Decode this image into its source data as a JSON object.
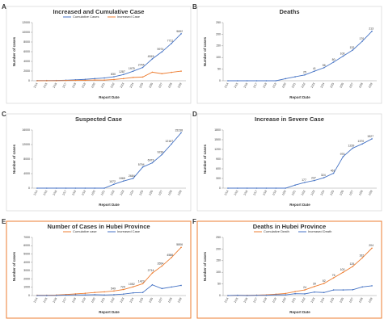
{
  "chart_data": [
    {
      "type": "line",
      "letter": "A",
      "title": "Increased and Cumulative Case",
      "x_label": "Report Date",
      "y_label": "Number of cases",
      "categories": [
        "1/14",
        "1/15",
        "1/16",
        "1/17",
        "1/18",
        "1/19",
        "1/20",
        "1/21",
        "1/22",
        "1/23",
        "1/24",
        "1/25",
        "1/26",
        "1/27",
        "1/28",
        "1/29"
      ],
      "series": [
        {
          "name": "Cumulative Cases",
          "color": "#4472c4",
          "values": [
            41,
            45,
            62,
            121,
            198,
            291,
            440,
            571,
            830,
            1287,
            1975,
            2744,
            4515,
            5974,
            7711,
            9692
          ]
        },
        {
          "name": "Increased Case",
          "color": "#ed7d31",
          "values": [
            0,
            4,
            17,
            59,
            77,
            93,
            149,
            131,
            259,
            444,
            688,
            769,
            1771,
            1459,
            1737,
            1982
          ]
        }
      ],
      "ylim": [
        0,
        12000
      ],
      "yticks": [
        0,
        2000,
        4000,
        6000,
        8000,
        10000,
        12000
      ]
    },
    {
      "type": "line",
      "letter": "B",
      "title": "Deaths",
      "x_label": "Report Date",
      "y_label": "Number of cases",
      "categories": [
        "1/14",
        "1/15",
        "1/16",
        "1/17",
        "1/18",
        "1/19",
        "1/20",
        "1/21",
        "1/22",
        "1/23",
        "1/24",
        "1/25",
        "1/26",
        "1/27",
        "1/28",
        "1/29"
      ],
      "series": [
        {
          "name": "Deaths",
          "color": "#4472c4",
          "values": [
            0,
            0,
            0,
            0,
            0,
            0,
            9,
            17,
            25,
            41,
            56,
            80,
            106,
            132,
            170,
            213
          ]
        }
      ],
      "ylim": [
        0,
        250
      ],
      "yticks": [
        0,
        50,
        100,
        150,
        200,
        250
      ]
    },
    {
      "type": "line",
      "letter": "C",
      "title": "Suspected Case",
      "x_label": "Report Date",
      "y_label": "Number of cases",
      "categories": [
        "1/14",
        "1/15",
        "1/16",
        "1/17",
        "1/18",
        "1/19",
        "1/20",
        "1/21",
        "1/22",
        "1/23",
        "1/24",
        "1/25",
        "1/26",
        "1/27",
        "1/28",
        "1/29"
      ],
      "series": [
        {
          "name": "Suspected Case",
          "color": "#4472c4",
          "values": [
            0,
            0,
            0,
            0,
            0,
            0,
            0,
            0,
            1072,
            1965,
            2684,
            5794,
            6973,
            9239,
            12167,
            15238
          ]
        }
      ],
      "ylim": [
        0,
        16000
      ],
      "yticks": [
        0,
        4000,
        8000,
        12000,
        16000
      ]
    },
    {
      "type": "line",
      "letter": "D",
      "title": "Increase in Severe Case",
      "x_label": "Report Date",
      "y_label": "Number of cases",
      "categories": [
        "1/14",
        "1/15",
        "1/16",
        "1/17",
        "1/18",
        "1/19",
        "1/20",
        "1/21",
        "1/22",
        "1/23",
        "1/24",
        "1/25",
        "1/26",
        "1/27",
        "1/28",
        "1/29"
      ],
      "series": [
        {
          "name": "Severe Case",
          "color": "#4472c4",
          "values": [
            0,
            0,
            0,
            0,
            0,
            0,
            0,
            95,
            177,
            237,
            324,
            461,
            976,
            1239,
            1370,
            1527
          ]
        }
      ],
      "ylim": [
        0,
        1800
      ],
      "yticks": [
        0,
        300,
        600,
        900,
        1200,
        1500,
        1800
      ]
    },
    {
      "type": "line",
      "letter": "E",
      "title": "Number of Cases in Hubei Province",
      "x_label": "Report Date",
      "y_label": "Number of cases",
      "border": "#ed7d31",
      "categories": [
        "1/14",
        "1/15",
        "1/16",
        "1/17",
        "1/18",
        "1/19",
        "1/20",
        "1/21",
        "1/22",
        "1/23",
        "1/24",
        "1/25",
        "1/26",
        "1/27",
        "1/28",
        "1/29"
      ],
      "series": [
        {
          "name": "Cumulative case",
          "color": "#ed7d31",
          "values": [
            41,
            45,
            62,
            121,
            198,
            270,
            375,
            444,
            549,
            729,
            1052,
            1423,
            2714,
            3554,
            4586,
            5806
          ]
        },
        {
          "name": "Increased Case",
          "color": "#4472c4",
          "values": [
            0,
            4,
            17,
            59,
            77,
            72,
            105,
            69,
            105,
            180,
            323,
            371,
            1291,
            840,
            1032,
            1220
          ]
        }
      ],
      "ylim": [
        0,
        7000
      ],
      "yticks": [
        0,
        1000,
        2000,
        3000,
        4000,
        5000,
        6000,
        7000
      ]
    },
    {
      "type": "line",
      "letter": "F",
      "title": "Deaths in Hubei Province",
      "x_label": "Report Date",
      "y_label": "Number of cases",
      "border": "#ed7d31",
      "categories": [
        "1/14",
        "1/15",
        "1/16",
        "1/17",
        "1/18",
        "1/19",
        "1/20",
        "1/21",
        "1/22",
        "1/23",
        "1/24",
        "1/25",
        "1/26",
        "1/27",
        "1/28",
        "1/29"
      ],
      "series": [
        {
          "name": "Cumulative Death",
          "color": "#ed7d31",
          "values": [
            0,
            1,
            1,
            2,
            3,
            6,
            9,
            17,
            24,
            39,
            52,
            76,
            100,
            125,
            162,
            204
          ]
        },
        {
          "name": "Increased Death",
          "color": "#4472c4",
          "values": [
            0,
            1,
            0,
            1,
            1,
            3,
            3,
            8,
            7,
            15,
            13,
            24,
            24,
            25,
            37,
            42
          ]
        }
      ],
      "ylim": [
        0,
        250
      ],
      "yticks": [
        0,
        50,
        100,
        150,
        200,
        250
      ]
    }
  ]
}
